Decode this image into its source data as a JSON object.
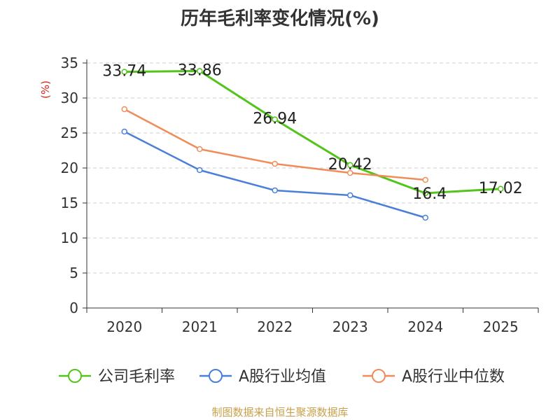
{
  "chart_data": {
    "type": "line",
    "title": "历年毛利率变化情况(%)",
    "ylabel": "(%)",
    "xlabel": "",
    "ylim": [
      0,
      35
    ],
    "yticks": [
      0,
      5,
      10,
      15,
      20,
      25,
      30,
      35
    ],
    "grid": true,
    "legend_position": "bottom",
    "categories": [
      "2020",
      "2021",
      "2022",
      "2023",
      "2024",
      "2025"
    ],
    "series": [
      {
        "name": "公司毛利率",
        "color": "#52c41a",
        "values": [
          33.74,
          33.86,
          26.94,
          20.42,
          16.4,
          17.02
        ],
        "labels": [
          "33.74",
          "33.86",
          "26.94",
          "20.42",
          "16.4",
          "17.02"
        ]
      },
      {
        "name": "A股行业均值",
        "color": "#4a7fd9",
        "values": [
          25.2,
          19.7,
          16.8,
          16.1,
          12.9,
          null
        ]
      },
      {
        "name": "A股行业中位数",
        "color": "#f08c5a",
        "values": [
          28.4,
          22.7,
          20.6,
          19.3,
          18.3,
          null
        ]
      }
    ]
  },
  "footer": {
    "source": "制图数据来自恒生聚源数据库",
    "color": "#c8a04a"
  },
  "ylabel_color": "#d9251c"
}
